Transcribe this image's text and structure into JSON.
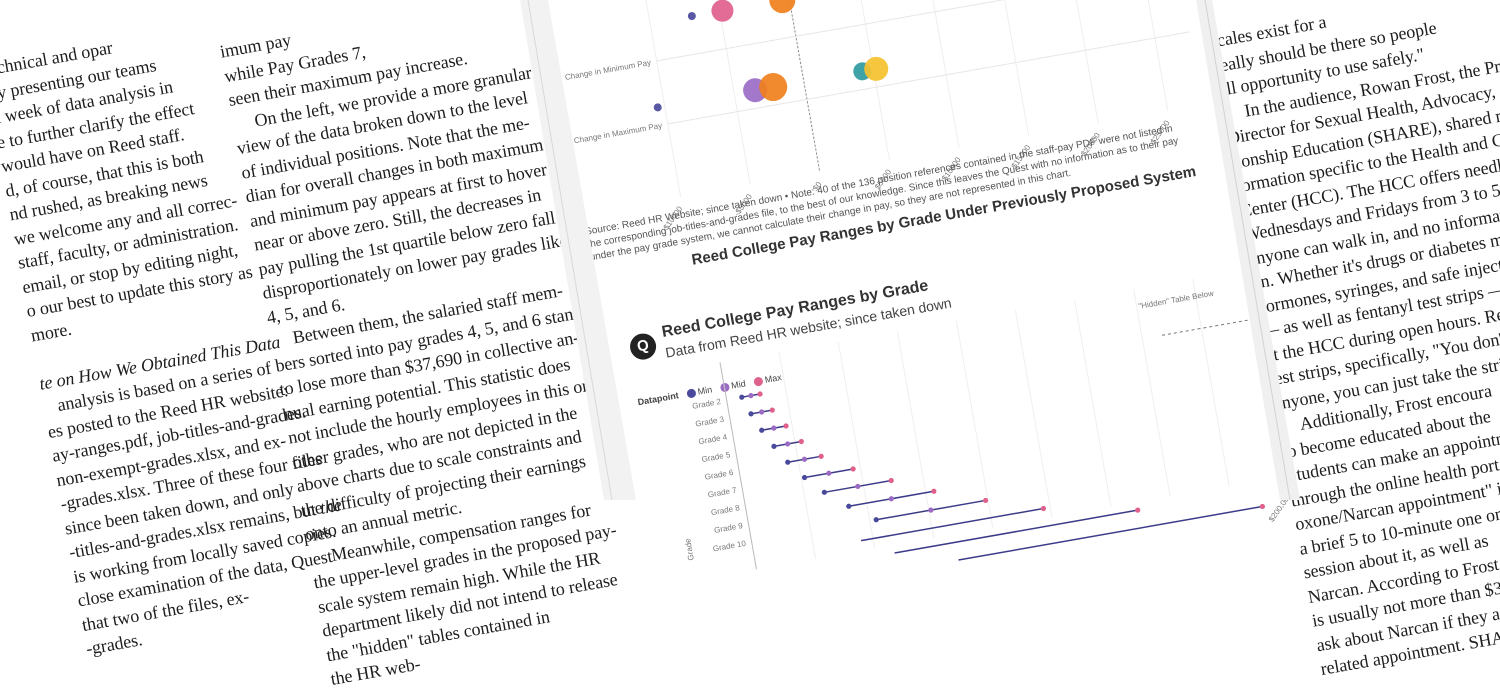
{
  "left_column": {
    "lines": [
      "technical and opar",
      "by presenting our teams",
      "a week of data analysis in",
      "e to further clarify the effect",
      "would have on Reed staff.",
      "d, of course, that this is both",
      "nd rushed, as breaking news",
      "we welcome any and all correc-",
      "staff, faculty, or administration.",
      "email, or stop by editing night,",
      "o our best to update this story as",
      "more."
    ],
    "note_heading": "te on How We Obtained This Data",
    "note_lines": [
      "analysis is based on a series of",
      "es posted to the Reed HR website:",
      "ay-ranges.pdf, job-titles-and-grades.",
      "non-exempt-grades.xlsx, and ex-",
      "-grades.xlsx. Three of these four files",
      "since been taken down, and only",
      "-titles-and-grades.xlsx remains, but the",
      "is working from locally saved copies.",
      "close examination of the data, Quest",
      "that two of the files, ex-",
      "-grades."
    ]
  },
  "middle_column": {
    "lines": [
      "imum pay",
      "while Pay Grades 7,",
      "seen their maximum pay increase.",
      "On the left, we provide a more granular",
      "view of the data broken down to the level",
      "of individual positions. Note that the me-",
      "dian for overall changes in both maximum",
      "and minimum pay appears at first to hover",
      "near or above zero. Still, the decreases in",
      "pay pulling the 1st quartile below zero fall",
      "disproportionately on lower pay grades like",
      "4, 5, and 6.",
      "Between them, the salaried staff mem-",
      "bers sorted into pay grades 4, 5, and 6 stand",
      "to lose more than $37,690 in collective an-",
      "nual earning potential. This statistic does",
      "not include the hourly employees in this or",
      "other grades, who are not depicted in the",
      "above charts due to scale constraints and",
      "the difficulty of projecting their earnings",
      "onto an annual metric.",
      "Meanwhile, compensation ranges for",
      "the upper-level grades in the proposed pay-",
      "scale system remain high. While the HR",
      "department likely did not intend to release",
      "the \"hidden\" tables contained in",
      "the HR web-"
    ]
  },
  "right_column": {
    "lines": [
      "scales exist for a",
      "really should be there so people",
      "all opportunity to use safely.\"",
      "In the audience, Rowan Frost, the Prog",
      "Director for Sexual Health, Advocacy, and",
      "tionship Education (SHARE), shared relat",
      "formation specific to the Health and Coun",
      "Center (HCC). The HCC offers needle exch",
      "Wednesdays and Fridays from 3 to 5 pm",
      "anyone can walk in, and no informatio",
      "en. Whether it's drugs or diabetes medi",
      "hormones, syringes, and safe injection",
      "— as well as fentanyl test strips — ar",
      "at the HCC during open hours. Re",
      "test strips, specifically, \"You don't ha",
      "anyone, you can just take the strips",
      "Additionally, Frost encoura",
      "to become educated about the",
      "Students can make an appointm",
      "through the online health porta",
      "oxone/Narcan appointment\" in",
      "a brief 5 to 10-minute one on o",
      "session about it, as well as",
      "Narcan. According to Frost, t",
      "is usually not more than $3",
      "ask about Narcan if they a",
      "related appointment. SHARE"
    ]
  },
  "top_chart": {
    "row_labels": [
      "Change in Minimum Pay",
      "Change in Maximum Pay"
    ],
    "x_ticks": [
      "-$10000",
      "-$5000",
      "$0",
      "$5000",
      "$10000",
      "$15000",
      "$20000",
      "$25000"
    ],
    "source_note": "Source: Reed HR Website; since taken down • Note: 40 of the 136 position references contained in the staff-pay PDF were not listed in the corresponding job-titles-and-grades file, to the best of our knowledge. Since this leaves the Quest with no information as to their pay under the pay grade system, we cannot calculate their change in pay, so they are not represented in this chart."
  },
  "overlay_title": "Reed College Pay Ranges by Grade Under Previously Proposed System",
  "chart_data": {
    "type": "scatter",
    "title": "Reed College Pay Ranges by Grade",
    "subtitle": "Data from Reed HR website; since taken down",
    "logo_letter": "Q",
    "legend_title": "Datapoint",
    "legend": [
      {
        "name": "Min",
        "color": "#4a4a9c"
      },
      {
        "name": "Mid",
        "color": "#9b6bc4"
      },
      {
        "name": "Max",
        "color": "#e0608c"
      }
    ],
    "annotation": "\"Hidden\" Table Below",
    "ylabel": "Grade",
    "categories": [
      "Grade 2",
      "Grade 3",
      "Grade 4",
      "Grade 5",
      "Grade 6",
      "Grade 7",
      "Grade 8",
      "Grade 9",
      "Grade 10"
    ],
    "series": [
      {
        "name": "Min",
        "values": [
          30000,
          32000,
          34500,
          37500,
          41000,
          45500,
          51000,
          58000,
          66000
        ]
      },
      {
        "name": "Mid",
        "values": [
          33000,
          35500,
          38500,
          42000,
          46500,
          53500,
          62000,
          72000,
          84000
        ]
      },
      {
        "name": "Max",
        "values": [
          36000,
          39000,
          42500,
          46500,
          52000,
          61500,
          73000,
          86000,
          102000
        ]
      }
    ],
    "xlim": [
      25000,
      200000
    ],
    "x_tick_labels": [
      "$200,000"
    ]
  },
  "colors": {
    "min": "#4a4a9c",
    "mid": "#9b6bc4",
    "max": "#e0608c",
    "teal": "#2f9aa0",
    "blue": "#4aa6e0",
    "yellow": "#f5c22e",
    "orange": "#f07f1c",
    "cyan": "#6fd0dc"
  }
}
